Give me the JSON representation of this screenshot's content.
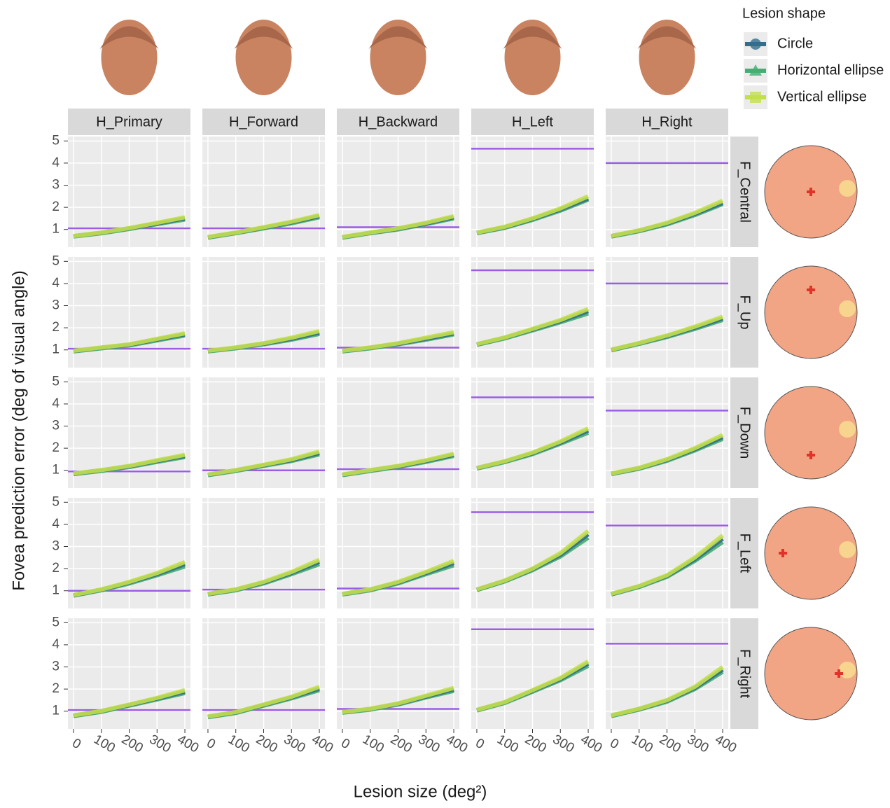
{
  "chart_data": {
    "type": "facet-line",
    "ylabel": "Fovea prediction error (deg of visual angle)",
    "xlabel": "Lesion size (deg²)",
    "legend_title": "Lesion shape",
    "columns": [
      "H_Primary",
      "H_Forward",
      "H_Backward",
      "H_Left",
      "H_Right"
    ],
    "rows": [
      "F_Central",
      "F_Up",
      "F_Down",
      "F_Left",
      "F_Right"
    ],
    "x": [
      0,
      100,
      200,
      300,
      400
    ],
    "xlim": [
      -20,
      420
    ],
    "xticks": [
      0,
      100,
      200,
      300,
      400
    ],
    "ylim": [
      0.2,
      5.2
    ],
    "yticks": [
      1,
      2,
      3,
      4,
      5
    ],
    "grid": true,
    "reference_color": "#9b5de5",
    "series": [
      {
        "name": "Circle",
        "color": "#336f8c",
        "marker": "circle"
      },
      {
        "name": "Horizontal ellipse",
        "color": "#45ae72",
        "marker": "triangle"
      },
      {
        "name": "Vertical ellipse",
        "color": "#c3e04c",
        "marker": "square"
      }
    ],
    "panels": [
      [
        {
          "reference": 1.05,
          "series": [
            [
              0.7,
              0.85,
              1.05,
              1.27,
              1.5
            ],
            [
              0.68,
              0.83,
              1.02,
              1.24,
              1.45
            ],
            [
              0.7,
              0.86,
              1.06,
              1.3,
              1.55
            ]
          ]
        },
        {
          "reference": 1.05,
          "series": [
            [
              0.65,
              0.85,
              1.08,
              1.32,
              1.6
            ],
            [
              0.63,
              0.83,
              1.05,
              1.28,
              1.55
            ],
            [
              0.66,
              0.86,
              1.1,
              1.35,
              1.65
            ]
          ]
        },
        {
          "reference": 1.1,
          "series": [
            [
              0.65,
              0.85,
              1.03,
              1.27,
              1.55
            ],
            [
              0.63,
              0.83,
              1.0,
              1.24,
              1.5
            ],
            [
              0.66,
              0.86,
              1.05,
              1.3,
              1.6
            ]
          ]
        },
        {
          "reference": 4.65,
          "series": [
            [
              0.85,
              1.1,
              1.47,
              1.9,
              2.4
            ],
            [
              0.83,
              1.07,
              1.43,
              1.85,
              2.35
            ],
            [
              0.86,
              1.12,
              1.5,
              1.95,
              2.5
            ]
          ]
        },
        {
          "reference": 4.0,
          "series": [
            [
              0.7,
              0.95,
              1.27,
              1.7,
              2.2
            ],
            [
              0.68,
              0.92,
              1.23,
              1.65,
              2.15
            ],
            [
              0.71,
              0.96,
              1.3,
              1.75,
              2.3
            ]
          ]
        }
      ],
      [
        {
          "reference": 1.05,
          "series": [
            [
              0.95,
              1.1,
              1.23,
              1.47,
              1.7
            ],
            [
              0.93,
              1.07,
              1.2,
              1.43,
              1.65
            ],
            [
              0.96,
              1.11,
              1.25,
              1.5,
              1.75
            ]
          ]
        },
        {
          "reference": 1.05,
          "series": [
            [
              0.95,
              1.1,
              1.28,
              1.5,
              1.78
            ],
            [
              0.93,
              1.07,
              1.25,
              1.46,
              1.72
            ],
            [
              0.96,
              1.11,
              1.3,
              1.55,
              1.85
            ]
          ]
        },
        {
          "reference": 1.1,
          "series": [
            [
              0.95,
              1.1,
              1.28,
              1.5,
              1.74
            ],
            [
              0.93,
              1.07,
              1.25,
              1.46,
              1.7
            ],
            [
              0.96,
              1.11,
              1.3,
              1.55,
              1.8
            ]
          ]
        },
        {
          "reference": 4.6,
          "series": [
            [
              1.25,
              1.55,
              1.92,
              2.3,
              2.75
            ],
            [
              1.23,
              1.52,
              1.88,
              2.25,
              2.65
            ],
            [
              1.26,
              1.56,
              1.95,
              2.35,
              2.85
            ]
          ]
        },
        {
          "reference": 4.0,
          "series": [
            [
              1.0,
              1.3,
              1.62,
              2.0,
              2.42
            ],
            [
              0.98,
              1.27,
              1.58,
              1.95,
              2.35
            ],
            [
              1.01,
              1.31,
              1.65,
              2.05,
              2.5
            ]
          ]
        }
      ],
      [
        {
          "reference": 0.95,
          "series": [
            [
              0.85,
              1.0,
              1.18,
              1.42,
              1.65
            ],
            [
              0.83,
              0.97,
              1.15,
              1.38,
              1.6
            ],
            [
              0.86,
              1.01,
              1.2,
              1.45,
              1.7
            ]
          ]
        },
        {
          "reference": 1.0,
          "series": [
            [
              0.8,
              1.0,
              1.23,
              1.46,
              1.78
            ],
            [
              0.78,
              0.97,
              1.2,
              1.42,
              1.72
            ],
            [
              0.81,
              1.01,
              1.25,
              1.5,
              1.85
            ]
          ]
        },
        {
          "reference": 1.05,
          "series": [
            [
              0.8,
              1.0,
              1.18,
              1.42,
              1.7
            ],
            [
              0.78,
              0.97,
              1.15,
              1.38,
              1.65
            ],
            [
              0.81,
              1.01,
              1.2,
              1.45,
              1.75
            ]
          ]
        },
        {
          "reference": 4.3,
          "series": [
            [
              1.1,
              1.4,
              1.77,
              2.25,
              2.8
            ],
            [
              1.08,
              1.37,
              1.73,
              2.2,
              2.7
            ],
            [
              1.11,
              1.41,
              1.8,
              2.3,
              2.9
            ]
          ]
        },
        {
          "reference": 3.7,
          "series": [
            [
              0.85,
              1.1,
              1.47,
              1.95,
              2.5
            ],
            [
              0.83,
              1.07,
              1.43,
              1.9,
              2.42
            ],
            [
              0.86,
              1.11,
              1.5,
              2.0,
              2.6
            ]
          ]
        }
      ],
      [
        {
          "reference": 1.0,
          "series": [
            [
              0.8,
              1.05,
              1.37,
              1.75,
              2.2
            ],
            [
              0.78,
              1.02,
              1.33,
              1.7,
              2.1
            ],
            [
              0.81,
              1.06,
              1.4,
              1.8,
              2.3
            ]
          ]
        },
        {
          "reference": 1.05,
          "series": [
            [
              0.85,
              1.05,
              1.37,
              1.8,
              2.3
            ],
            [
              0.83,
              1.02,
              1.33,
              1.75,
              2.2
            ],
            [
              0.86,
              1.06,
              1.4,
              1.85,
              2.4
            ]
          ]
        },
        {
          "reference": 1.1,
          "series": [
            [
              0.85,
              1.05,
              1.37,
              1.8,
              2.25
            ],
            [
              0.83,
              1.02,
              1.33,
              1.75,
              2.15
            ],
            [
              0.86,
              1.06,
              1.4,
              1.85,
              2.35
            ]
          ]
        },
        {
          "reference": 4.55,
          "series": [
            [
              1.05,
              1.45,
              1.97,
              2.62,
              3.55
            ],
            [
              1.03,
              1.42,
              1.93,
              2.55,
              3.4
            ],
            [
              1.06,
              1.46,
              2.0,
              2.7,
              3.7
            ]
          ]
        },
        {
          "reference": 3.95,
          "series": [
            [
              0.85,
              1.2,
              1.67,
              2.42,
              3.35
            ],
            [
              0.83,
              1.17,
              1.63,
              2.35,
              3.2
            ],
            [
              0.86,
              1.21,
              1.7,
              2.5,
              3.5
            ]
          ]
        }
      ],
      [
        {
          "reference": 1.05,
          "series": [
            [
              0.8,
              1.0,
              1.28,
              1.57,
              1.88
            ],
            [
              0.78,
              0.97,
              1.25,
              1.53,
              1.82
            ],
            [
              0.81,
              1.01,
              1.3,
              1.6,
              1.95
            ]
          ]
        },
        {
          "reference": 1.05,
          "series": [
            [
              0.75,
              0.95,
              1.28,
              1.62,
              2.02
            ],
            [
              0.73,
              0.92,
              1.25,
              1.58,
              1.95
            ],
            [
              0.76,
              0.96,
              1.3,
              1.65,
              2.1
            ]
          ]
        },
        {
          "reference": 1.1,
          "series": [
            [
              0.95,
              1.1,
              1.33,
              1.66,
              1.98
            ],
            [
              0.93,
              1.07,
              1.3,
              1.62,
              1.92
            ],
            [
              0.96,
              1.11,
              1.35,
              1.7,
              2.05
            ]
          ]
        },
        {
          "reference": 4.7,
          "series": [
            [
              1.05,
              1.4,
              1.92,
              2.45,
              3.15
            ],
            [
              1.03,
              1.37,
              1.88,
              2.4,
              3.05
            ],
            [
              1.06,
              1.41,
              1.95,
              2.5,
              3.25
            ]
          ]
        },
        {
          "reference": 4.05,
          "series": [
            [
              0.8,
              1.1,
              1.47,
              2.05,
              2.88
            ],
            [
              0.78,
              1.07,
              1.43,
              2.0,
              2.78
            ],
            [
              0.81,
              1.11,
              1.5,
              2.1,
              3.0
            ]
          ]
        }
      ]
    ]
  }
}
